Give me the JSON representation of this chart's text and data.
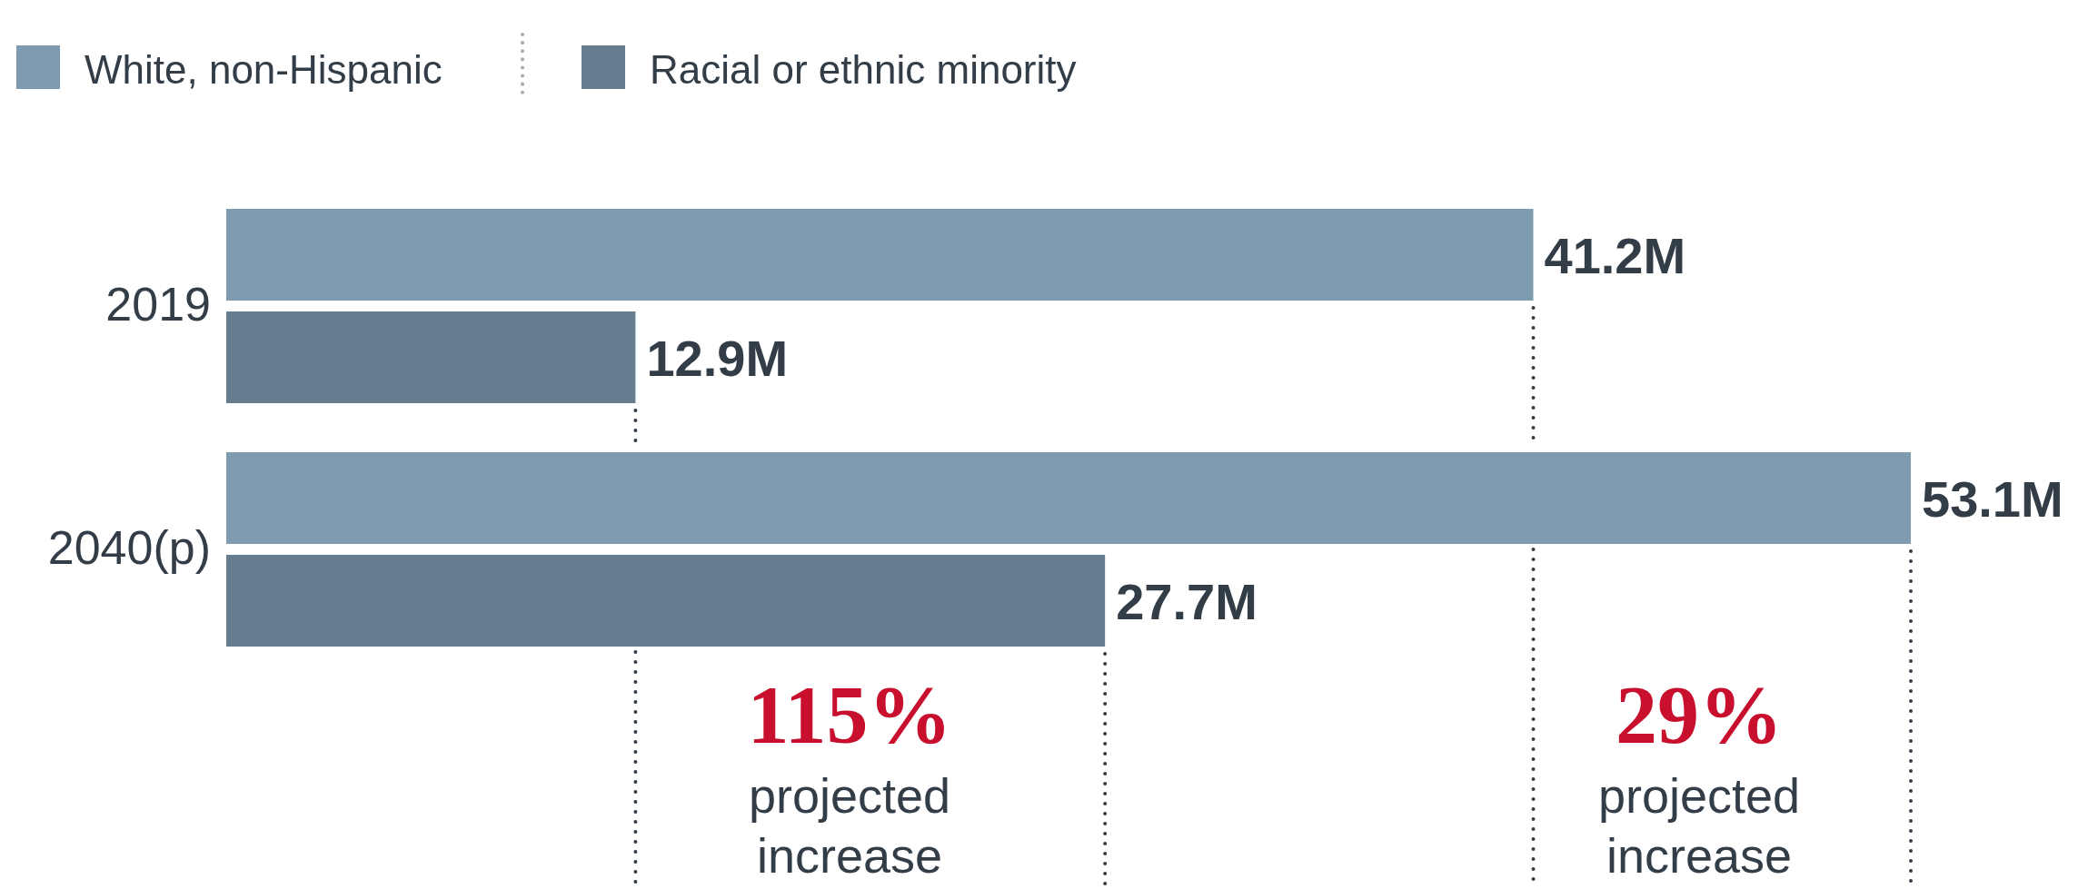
{
  "chart_data": {
    "type": "bar",
    "orientation": "horizontal",
    "categories": [
      "2019",
      "2040(p)"
    ],
    "series": [
      {
        "name": "White, non-Hispanic",
        "color": "#7e9bb0",
        "values": [
          41.2,
          53.1
        ],
        "value_labels": [
          "41.2M",
          "53.1M"
        ]
      },
      {
        "name": "Racial or ethnic minority",
        "color": "#667d90",
        "values": [
          12.9,
          27.7
        ],
        "value_labels": [
          "12.9M",
          "27.7M"
        ]
      }
    ],
    "tick_labels": "y",
    "legend": "top left",
    "annotations": [
      "115%",
      "projected increase",
      "29%",
      "projected increase"
    ]
  }
}
